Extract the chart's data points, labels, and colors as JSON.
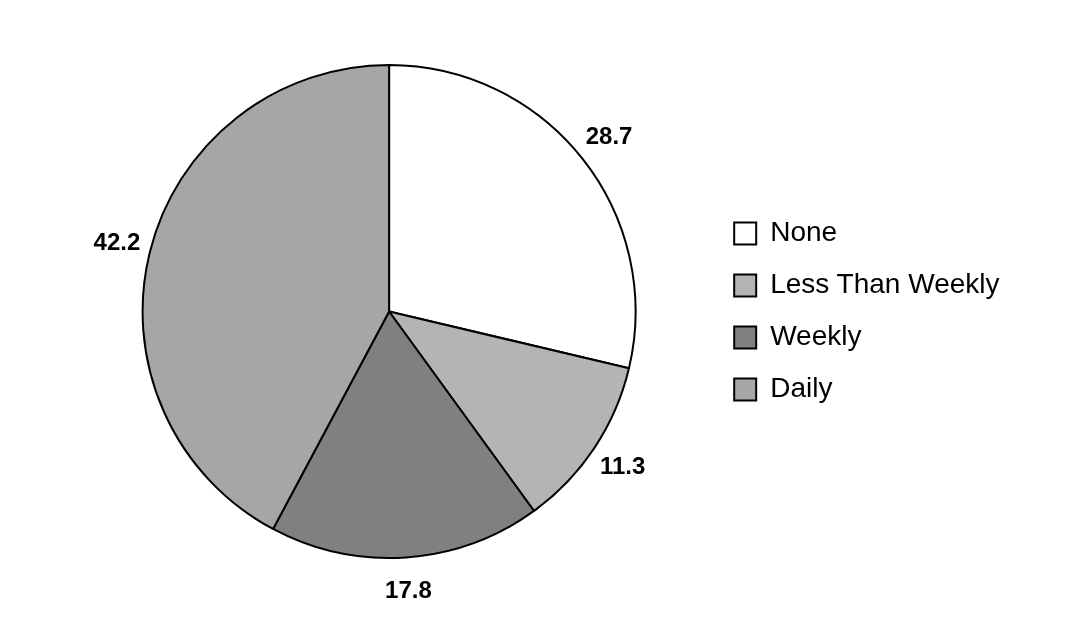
{
  "chart_data": {
    "type": "pie",
    "categories": [
      "None",
      "Less Than Weekly",
      "Weekly",
      "Daily"
    ],
    "values": [
      28.7,
      11.3,
      17.8,
      42.2
    ],
    "colors": [
      "#ffffff",
      "#b4b4b4",
      "#808080",
      "#a6a6a6"
    ],
    "data_labels": true,
    "legend": "right"
  }
}
